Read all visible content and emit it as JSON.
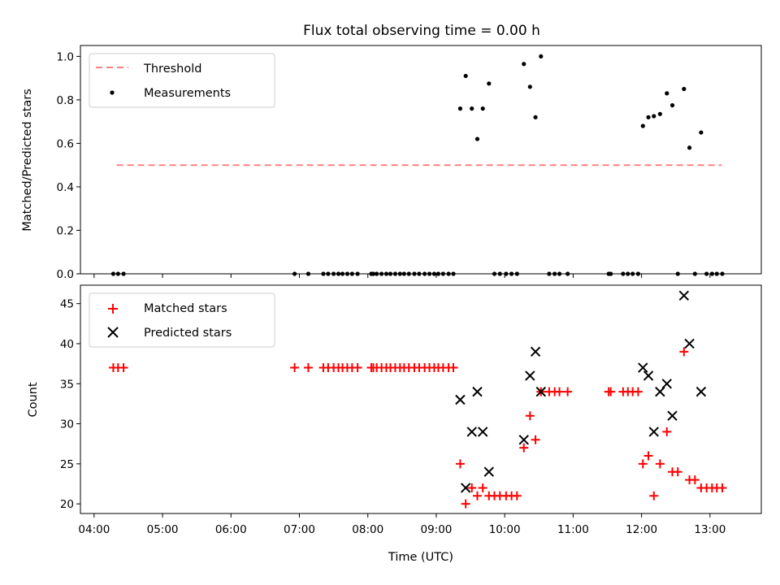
{
  "chart_data": [
    {
      "type": "scatter",
      "title": "Flux total observing time = 0.00 h",
      "xlabel": "",
      "ylabel": "Matched/Predicted stars",
      "ylim": [
        0.0,
        1.05
      ],
      "yticks": [
        "0.0",
        "0.2",
        "0.4",
        "0.6",
        "0.8",
        "1.0"
      ],
      "x_range_hours": [
        3.8,
        13.75
      ],
      "legend_position": "upper-left",
      "threshold": {
        "name": "Threshold",
        "value": 0.5,
        "x_start": 4.33,
        "x_end": 13.17,
        "color": "#ff8080",
        "style": "dashed"
      },
      "series": [
        {
          "name": "Measurements",
          "marker": "dot",
          "color": "#000000",
          "x": [
            4.28,
            4.35,
            4.43,
            6.93,
            7.13,
            7.35,
            7.42,
            7.5,
            7.57,
            7.63,
            7.7,
            7.77,
            7.85,
            8.05,
            8.08,
            8.13,
            8.2,
            8.27,
            8.33,
            8.4,
            8.47,
            8.53,
            8.6,
            8.68,
            8.75,
            8.83,
            8.9,
            8.97,
            9.03,
            9.1,
            9.18,
            9.25,
            9.35,
            9.43,
            9.52,
            9.6,
            9.68,
            9.77,
            9.85,
            9.93,
            10.02,
            10.1,
            10.18,
            10.28,
            10.37,
            10.45,
            10.53,
            10.65,
            10.73,
            10.8,
            10.92,
            11.52,
            11.55,
            11.73,
            11.8,
            11.87,
            11.95,
            12.02,
            12.1,
            12.18,
            12.27,
            12.37,
            12.45,
            12.53,
            12.62,
            12.7,
            12.78,
            12.87,
            12.95,
            13.03,
            13.1,
            13.18
          ],
          "y": [
            0,
            0,
            0,
            0,
            0,
            0,
            0,
            0,
            0,
            0,
            0,
            0,
            0,
            0,
            0,
            0,
            0,
            0,
            0,
            0,
            0,
            0,
            0,
            0,
            0,
            0,
            0,
            0,
            0,
            0,
            0,
            0,
            0.76,
            0.91,
            0.76,
            0.62,
            0.76,
            0.875,
            0,
            0,
            0,
            0,
            0,
            0.965,
            0.86,
            0.72,
            1.0,
            0,
            0,
            0,
            0,
            0,
            0,
            0,
            0,
            0,
            0,
            0.68,
            0.72,
            0.725,
            0.735,
            0.83,
            0.775,
            0,
            0.85,
            0.58,
            0,
            0.65,
            0,
            0,
            0,
            0
          ]
        }
      ]
    },
    {
      "type": "scatter",
      "title": "",
      "xlabel": "Time (UTC)",
      "ylabel": "Count",
      "ylim": [
        18.8,
        47.3
      ],
      "yticks": [
        "20",
        "25",
        "30",
        "35",
        "40",
        "45"
      ],
      "x_range_hours": [
        3.8,
        13.75
      ],
      "xticks": [
        "04:00",
        "05:00",
        "06:00",
        "07:00",
        "08:00",
        "09:00",
        "10:00",
        "11:00",
        "12:00",
        "13:00"
      ],
      "legend_position": "upper-left",
      "series": [
        {
          "name": "Matched stars",
          "marker": "plus",
          "color": "#ff0000",
          "x": [
            4.28,
            4.35,
            4.43,
            6.93,
            7.13,
            7.35,
            7.42,
            7.5,
            7.57,
            7.63,
            7.7,
            7.77,
            7.85,
            8.05,
            8.08,
            8.13,
            8.2,
            8.27,
            8.33,
            8.4,
            8.47,
            8.53,
            8.6,
            8.68,
            8.75,
            8.83,
            8.9,
            8.97,
            9.03,
            9.1,
            9.18,
            9.25,
            9.35,
            9.43,
            9.52,
            9.6,
            9.68,
            9.77,
            9.85,
            9.93,
            10.02,
            10.1,
            10.18,
            10.28,
            10.37,
            10.45,
            10.53,
            10.65,
            10.73,
            10.8,
            10.92,
            11.52,
            11.55,
            11.73,
            11.8,
            11.87,
            11.95,
            12.02,
            12.1,
            12.18,
            12.27,
            12.37,
            12.45,
            12.53,
            12.62,
            12.7,
            12.78,
            12.87,
            12.95,
            13.03,
            13.1,
            13.18
          ],
          "y": [
            37,
            37,
            37,
            37,
            37,
            37,
            37,
            37,
            37,
            37,
            37,
            37,
            37,
            37,
            37,
            37,
            37,
            37,
            37,
            37,
            37,
            37,
            37,
            37,
            37,
            37,
            37,
            37,
            37,
            37,
            37,
            37,
            25,
            20,
            22,
            21,
            22,
            21,
            21,
            21,
            21,
            21,
            21,
            27,
            31,
            28,
            34,
            34,
            34,
            34,
            34,
            34,
            34,
            34,
            34,
            34,
            34,
            25,
            26,
            21,
            25,
            29,
            24,
            24,
            39,
            23,
            23,
            22,
            22,
            22,
            22,
            22
          ]
        },
        {
          "name": "Predicted stars",
          "marker": "x",
          "color": "#000000",
          "x": [
            9.35,
            9.43,
            9.52,
            9.6,
            9.68,
            9.77,
            10.28,
            10.37,
            10.45,
            10.53,
            12.02,
            12.1,
            12.18,
            12.27,
            12.37,
            12.45,
            12.62,
            12.7,
            12.87
          ],
          "y": [
            33,
            22,
            29,
            34,
            29,
            24,
            28,
            36,
            39,
            34,
            37,
            36,
            29,
            34,
            35,
            31,
            46,
            40,
            34
          ]
        }
      ]
    }
  ]
}
